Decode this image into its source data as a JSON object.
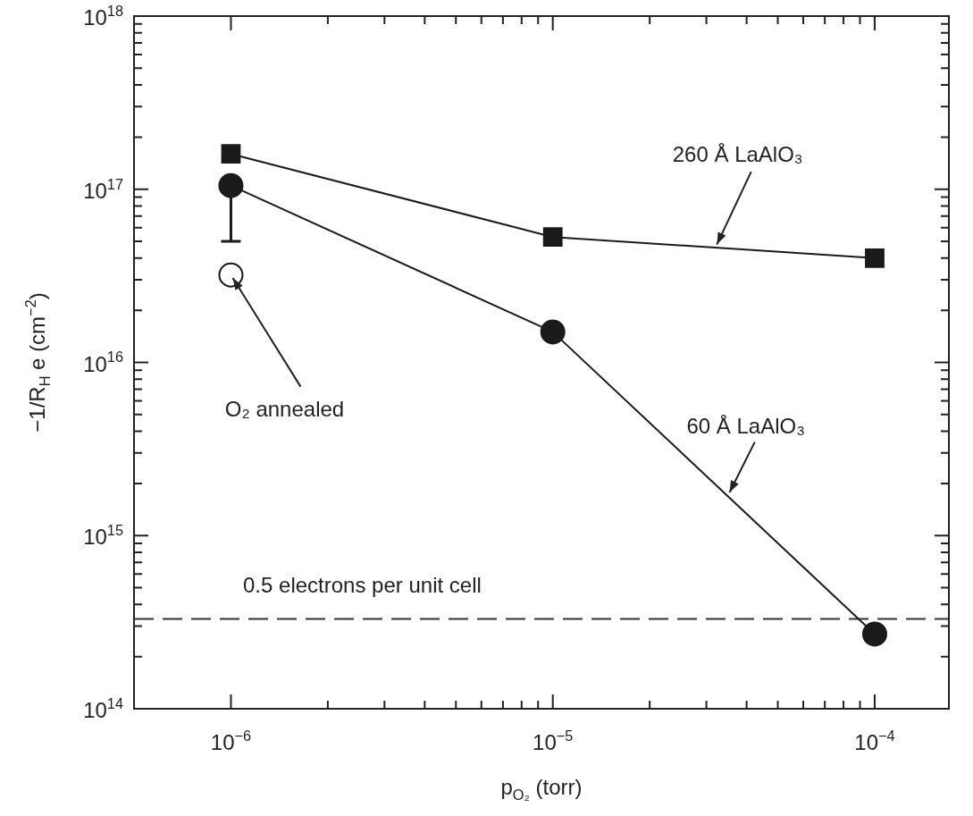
{
  "chart_data": {
    "type": "line",
    "xlabel": "p$_{O₂}$ (torr)",
    "ylabel": "−1/R$_{H}$ e (cm$^{−2}$)",
    "log": "xy",
    "xlim": [
      5e-07,
      0.00017
    ],
    "ylim": [
      100000000000000.0,
      1e+18
    ],
    "xticks": [
      {
        "value": 1e-06,
        "label": "10$^{−6}$"
      },
      {
        "value": 2e-06,
        "label": null
      },
      {
        "value": 3e-06,
        "label": null
      },
      {
        "value": 4e-06,
        "label": null
      },
      {
        "value": 5e-06,
        "label": null
      },
      {
        "value": 6e-06,
        "label": null
      },
      {
        "value": 7e-06,
        "label": null
      },
      {
        "value": 8e-06,
        "label": null
      },
      {
        "value": 9e-06,
        "label": null
      },
      {
        "value": 1e-05,
        "label": "10$^{−5}$"
      },
      {
        "value": 2e-05,
        "label": null
      },
      {
        "value": 3e-05,
        "label": null
      },
      {
        "value": 4e-05,
        "label": null
      },
      {
        "value": 5e-05,
        "label": null
      },
      {
        "value": 6e-05,
        "label": null
      },
      {
        "value": 7e-05,
        "label": null
      },
      {
        "value": 8e-05,
        "label": null
      },
      {
        "value": 9e-05,
        "label": null
      },
      {
        "value": 0.0001,
        "label": "10$^{−4}$"
      }
    ],
    "yticks": [
      {
        "value": 100000000000000.0,
        "label": "10$^{14}$"
      },
      {
        "value": 1000000000000000.0,
        "label": "10$^{15}$"
      },
      {
        "value": 1e+16,
        "label": "10$^{16}$"
      },
      {
        "value": 1e+17,
        "label": "10$^{17}$"
      },
      {
        "value": 1e+18,
        "label": "10$^{18}$"
      }
    ],
    "grid": false,
    "legend": false,
    "series": [
      {
        "color": "#1a1a1a",
        "marker": "square",
        "x": [
          1e-06,
          1e-05,
          0.0001
        ],
        "values": [
          1.6e+17,
          5.3e+16,
          4e+16
        ]
      },
      {
        "color": "#1a1a1a",
        "marker": "circle",
        "x": [
          1e-06,
          1e-05,
          0.0001
        ],
        "values": [
          1.05e+17,
          1.5e+16,
          270000000000000.0
        ],
        "errors": [
          [
            5e+16,
            1.05e+17
          ],
          null,
          null
        ]
      },
      {
        "type": "scatter",
        "color": "#ffffff",
        "marker": "circle",
        "x": [
          1e-06
        ],
        "values": [
          3.2e+16
        ]
      }
    ],
    "ref_lines": [
      {
        "axis": "y",
        "value": 330000000000000.0,
        "label": "0.5 electrons per unit cell",
        "color": "#333333",
        "line_style": "dashed"
      }
    ],
    "annotations": [
      {
        "text": "260 Å LaAlO₃",
        "x": 3.2e-05,
        "y": 4.6e+16
      },
      {
        "text": "60 Å LaAlO₃",
        "x": 3.5e-05,
        "y": 1700000000000000.0
      },
      {
        "text": "O₂ annealed",
        "x": 1e-06,
        "y": 3.2e+16
      }
    ]
  }
}
